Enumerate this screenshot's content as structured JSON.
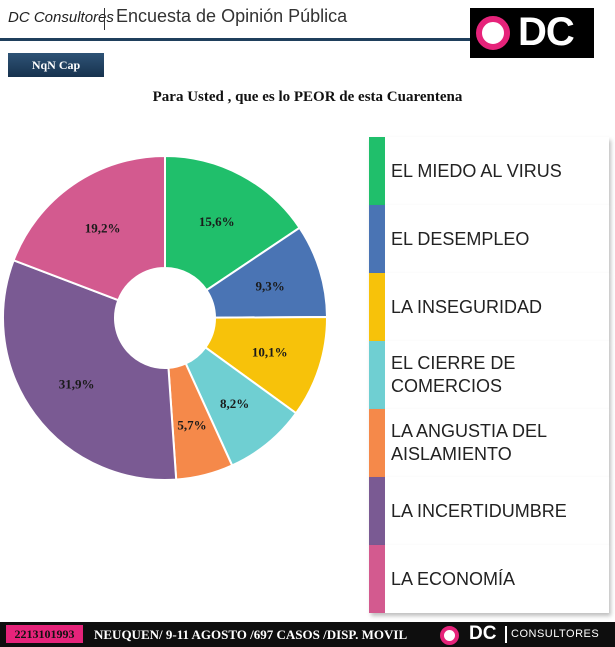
{
  "header": {
    "brand": "DC Consultores",
    "title": "Encuesta de Opinión Pública",
    "logo_text": "DC",
    "tag": "NqN Cap"
  },
  "question": "Para Usted , que es lo PEOR de esta Cuarentena",
  "chart_data": {
    "type": "pie",
    "donut": true,
    "categories": [
      "EL MIEDO AL VIRUS",
      "EL DESEMPLEO",
      "LA INSEGURIDAD",
      "EL CIERRE DE COMERCIOS",
      "LA ANGUSTIA DEL AISLAMIENTO",
      "LA INCERTIDUMBRE",
      "LA ECONOMÍA"
    ],
    "values": [
      15.6,
      9.3,
      10.1,
      8.2,
      5.7,
      31.9,
      19.2
    ],
    "labels": [
      "15,6%",
      "9,3%",
      "10,1%",
      "8,2%",
      "5,7%",
      "31,9%",
      "19,2%"
    ],
    "colors": [
      "#20bf6b",
      "#4a74b4",
      "#f7c20a",
      "#6fcfd2",
      "#f5894a",
      "#7a5a93",
      "#d35a8f"
    ],
    "legend_position": "right"
  },
  "legend": [
    {
      "label_lines": [
        "EL MIEDO AL VIRUS"
      ]
    },
    {
      "label_lines": [
        "EL DESEMPLEO"
      ]
    },
    {
      "label_lines": [
        "LA INSEGURIDAD"
      ]
    },
    {
      "label_lines": [
        "EL CIERRE DE",
        "COMERCIOS"
      ]
    },
    {
      "label_lines": [
        "LA ANGUSTIA DEL",
        "AISLAMIENTO"
      ]
    },
    {
      "label_lines": [
        "LA INCERTIDUMBRE"
      ]
    },
    {
      "label_lines": [
        "LA ECONOMÍA"
      ]
    }
  ],
  "footer": {
    "phone": "2213101993",
    "text": "NEUQUEN/ 9-11 AGOSTO /697 CASOS  /DISP. MOVIL",
    "logo_dc": "DC",
    "logo_consultores": "CONSULTORES"
  }
}
